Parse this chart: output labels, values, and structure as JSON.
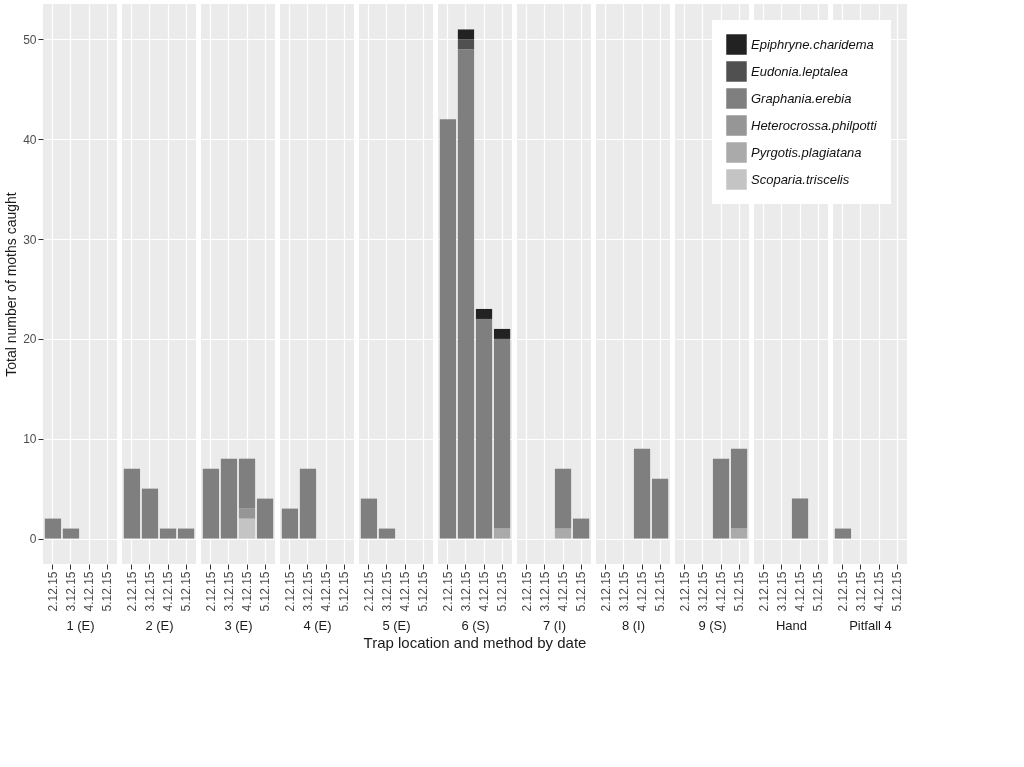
{
  "chart_data": [
    {
      "type": "bar",
      "title": "1 (E)",
      "ylabel": "Total number of moths caught",
      "categories": [
        "2.12.15",
        "3.12.15",
        "4.12.15",
        "5.12.15"
      ],
      "stacked": true,
      "ylim": [
        -2.55,
        53.55
      ],
      "yticks": [
        0,
        10,
        20,
        30,
        40,
        50
      ],
      "grid": true,
      "series": [
        {
          "color": "#c4c4c4",
          "values": [
            0,
            0,
            0,
            0
          ]
        },
        {
          "color": "#aaaaaa",
          "values": [
            0,
            0,
            0,
            0
          ]
        },
        {
          "color": "#969696",
          "values": [
            0,
            0,
            0,
            0
          ]
        },
        {
          "color": "#7f7f7f",
          "values": [
            2,
            1,
            0,
            0
          ]
        },
        {
          "color": "#505050",
          "values": [
            0,
            0,
            0,
            0
          ]
        },
        {
          "color": "#222222",
          "values": [
            0,
            0,
            0,
            0
          ]
        }
      ]
    },
    {
      "type": "bar",
      "title": "2 (E)",
      "categories": [
        "2.12.15",
        "3.12.15",
        "4.12.15",
        "5.12.15"
      ],
      "stacked": true,
      "ylim": [
        -2.55,
        53.55
      ],
      "yticks": [
        0,
        10,
        20,
        30,
        40,
        50
      ],
      "grid": true,
      "tick_labels": "x",
      "series": [
        {
          "color": "#c4c4c4",
          "values": [
            0,
            0,
            0,
            0
          ]
        },
        {
          "color": "#aaaaaa",
          "values": [
            0,
            0,
            0,
            0
          ]
        },
        {
          "color": "#969696",
          "values": [
            0,
            0,
            0,
            0
          ]
        },
        {
          "color": "#7f7f7f",
          "values": [
            7,
            5,
            1,
            1
          ]
        },
        {
          "color": "#505050",
          "values": [
            0,
            0,
            0,
            0
          ]
        },
        {
          "color": "#222222",
          "values": [
            0,
            0,
            0,
            0
          ]
        }
      ]
    },
    {
      "type": "bar",
      "title": "3 (E)",
      "categories": [
        "2.12.15",
        "3.12.15",
        "4.12.15",
        "5.12.15"
      ],
      "stacked": true,
      "ylim": [
        -2.55,
        53.55
      ],
      "yticks": [
        0,
        10,
        20,
        30,
        40,
        50
      ],
      "grid": true,
      "tick_labels": "x",
      "series": [
        {
          "color": "#c4c4c4",
          "values": [
            0,
            0,
            2,
            0
          ]
        },
        {
          "color": "#aaaaaa",
          "values": [
            0,
            0,
            0,
            0
          ]
        },
        {
          "color": "#969696",
          "values": [
            0,
            0,
            1,
            0
          ]
        },
        {
          "color": "#7f7f7f",
          "values": [
            7,
            8,
            5,
            4
          ]
        },
        {
          "color": "#505050",
          "values": [
            0,
            0,
            0,
            0
          ]
        },
        {
          "color": "#222222",
          "values": [
            0,
            0,
            0,
            0
          ]
        }
      ]
    },
    {
      "type": "bar",
      "title": "4 (E)",
      "categories": [
        "2.12.15",
        "3.12.15",
        "4.12.15",
        "5.12.15"
      ],
      "stacked": true,
      "ylim": [
        -2.55,
        53.55
      ],
      "yticks": [
        0,
        10,
        20,
        30,
        40,
        50
      ],
      "grid": true,
      "tick_labels": "x",
      "series": [
        {
          "color": "#c4c4c4",
          "values": [
            0,
            0,
            0,
            0
          ]
        },
        {
          "color": "#aaaaaa",
          "values": [
            0,
            0,
            0,
            0
          ]
        },
        {
          "color": "#969696",
          "values": [
            0,
            0,
            0,
            0
          ]
        },
        {
          "color": "#7f7f7f",
          "values": [
            3,
            7,
            0,
            0
          ]
        },
        {
          "color": "#505050",
          "values": [
            0,
            0,
            0,
            0
          ]
        },
        {
          "color": "#222222",
          "values": [
            0,
            0,
            0,
            0
          ]
        }
      ]
    },
    {
      "type": "bar",
      "title": "5 (E)",
      "categories": [
        "2.12.15",
        "3.12.15",
        "4.12.15",
        "5.12.15"
      ],
      "stacked": true,
      "ylim": [
        -2.55,
        53.55
      ],
      "yticks": [
        0,
        10,
        20,
        30,
        40,
        50
      ],
      "grid": true,
      "tick_labels": "x",
      "series": [
        {
          "color": "#c4c4c4",
          "values": [
            0,
            0,
            0,
            0
          ]
        },
        {
          "color": "#aaaaaa",
          "values": [
            0,
            0,
            0,
            0
          ]
        },
        {
          "color": "#969696",
          "values": [
            0,
            0,
            0,
            0
          ]
        },
        {
          "color": "#7f7f7f",
          "values": [
            4,
            1,
            0,
            0
          ]
        },
        {
          "color": "#505050",
          "values": [
            0,
            0,
            0,
            0
          ]
        },
        {
          "color": "#222222",
          "values": [
            0,
            0,
            0,
            0
          ]
        }
      ]
    },
    {
      "type": "bar",
      "title": "6 (S)",
      "xlabel": "Trap location and method by date",
      "categories": [
        "2.12.15",
        "3.12.15",
        "4.12.15",
        "5.12.15"
      ],
      "stacked": true,
      "ylim": [
        -2.55,
        53.55
      ],
      "yticks": [
        0,
        10,
        20,
        30,
        40,
        50
      ],
      "grid": true,
      "tick_labels": "x",
      "series": [
        {
          "color": "#c4c4c4",
          "values": [
            0,
            0,
            0,
            0
          ]
        },
        {
          "color": "#aaaaaa",
          "values": [
            0,
            0,
            0,
            1
          ]
        },
        {
          "color": "#969696",
          "values": [
            0,
            0,
            0,
            0
          ]
        },
        {
          "color": "#7f7f7f",
          "values": [
            42,
            49,
            22,
            19
          ]
        },
        {
          "color": "#505050",
          "values": [
            0,
            1,
            0,
            0
          ]
        },
        {
          "color": "#222222",
          "values": [
            0,
            1,
            1,
            1
          ]
        }
      ]
    },
    {
      "type": "bar",
      "title": "7 (I)",
      "categories": [
        "2.12.15",
        "3.12.15",
        "4.12.15",
        "5.12.15"
      ],
      "stacked": true,
      "ylim": [
        -2.55,
        53.55
      ],
      "yticks": [
        0,
        10,
        20,
        30,
        40,
        50
      ],
      "grid": true,
      "tick_labels": "x",
      "series": [
        {
          "color": "#c4c4c4",
          "values": [
            0,
            0,
            0,
            0
          ]
        },
        {
          "color": "#aaaaaa",
          "values": [
            0,
            0,
            1,
            0
          ]
        },
        {
          "color": "#969696",
          "values": [
            0,
            0,
            0,
            0
          ]
        },
        {
          "color": "#7f7f7f",
          "values": [
            0,
            0,
            6,
            2
          ]
        },
        {
          "color": "#505050",
          "values": [
            0,
            0,
            0,
            0
          ]
        },
        {
          "color": "#222222",
          "values": [
            0,
            0,
            0,
            0
          ]
        }
      ]
    },
    {
      "type": "bar",
      "title": "8 (I)",
      "categories": [
        "2.12.15",
        "3.12.15",
        "4.12.15",
        "5.12.15"
      ],
      "stacked": true,
      "ylim": [
        -2.55,
        53.55
      ],
      "yticks": [
        0,
        10,
        20,
        30,
        40,
        50
      ],
      "grid": true,
      "tick_labels": "x",
      "series": [
        {
          "color": "#c4c4c4",
          "values": [
            0,
            0,
            0,
            0
          ]
        },
        {
          "color": "#aaaaaa",
          "values": [
            0,
            0,
            0,
            0
          ]
        },
        {
          "color": "#969696",
          "values": [
            0,
            0,
            0,
            0
          ]
        },
        {
          "color": "#7f7f7f",
          "values": [
            0,
            0,
            9,
            6
          ]
        },
        {
          "color": "#505050",
          "values": [
            0,
            0,
            0,
            0
          ]
        },
        {
          "color": "#222222",
          "values": [
            0,
            0,
            0,
            0
          ]
        }
      ]
    },
    {
      "type": "bar",
      "title": "9 (S)",
      "categories": [
        "2.12.15",
        "3.12.15",
        "4.12.15",
        "5.12.15"
      ],
      "stacked": true,
      "ylim": [
        -2.55,
        53.55
      ],
      "yticks": [
        0,
        10,
        20,
        30,
        40,
        50
      ],
      "grid": true,
      "tick_labels": "x",
      "series": [
        {
          "color": "#c4c4c4",
          "values": [
            0,
            0,
            0,
            0
          ]
        },
        {
          "color": "#aaaaaa",
          "values": [
            0,
            0,
            0,
            1
          ]
        },
        {
          "color": "#969696",
          "values": [
            0,
            0,
            0,
            0
          ]
        },
        {
          "color": "#7f7f7f",
          "values": [
            0,
            0,
            8,
            8
          ]
        },
        {
          "color": "#505050",
          "values": [
            0,
            0,
            0,
            0
          ]
        },
        {
          "color": "#222222",
          "values": [
            0,
            0,
            0,
            0
          ]
        }
      ]
    },
    {
      "type": "bar",
      "title": "Hand",
      "categories": [
        "2.12.15",
        "3.12.15",
        "4.12.15",
        "5.12.15"
      ],
      "stacked": true,
      "ylim": [
        -2.55,
        53.55
      ],
      "yticks": [
        0,
        10,
        20,
        30,
        40,
        50
      ],
      "grid": true,
      "tick_labels": "x",
      "series": [
        {
          "color": "#c4c4c4",
          "values": [
            0,
            0,
            0,
            0
          ]
        },
        {
          "color": "#aaaaaa",
          "values": [
            0,
            0,
            0,
            0
          ]
        },
        {
          "color": "#969696",
          "values": [
            0,
            0,
            0,
            0
          ]
        },
        {
          "color": "#7f7f7f",
          "values": [
            0,
            0,
            4,
            0
          ]
        },
        {
          "color": "#505050",
          "values": [
            0,
            0,
            0,
            0
          ]
        },
        {
          "color": "#222222",
          "values": [
            0,
            0,
            0,
            0
          ]
        }
      ]
    },
    {
      "type": "bar",
      "title": "Pitfall 4",
      "categories": [
        "2.12.15",
        "3.12.15",
        "4.12.15",
        "5.12.15"
      ],
      "stacked": true,
      "ylim": [
        -2.55,
        53.55
      ],
      "yticks": [
        0,
        10,
        20,
        30,
        40,
        50
      ],
      "grid": true,
      "tick_labels": "x",
      "legend": "top left",
      "series": [
        {
          "name": "Scoparia.triscelis",
          "color": "#c4c4c4",
          "values": [
            0,
            0,
            0,
            0
          ]
        },
        {
          "name": "Pyrgotis.plagiatana",
          "color": "#aaaaaa",
          "values": [
            0,
            0,
            0,
            0
          ]
        },
        {
          "name": "Heterocrossa.philpotti",
          "color": "#969696",
          "values": [
            0,
            0,
            0,
            0
          ]
        },
        {
          "name": "Graphania.erebia",
          "color": "#7f7f7f",
          "values": [
            1,
            0,
            0,
            0
          ]
        },
        {
          "name": "Eudonia.leptalea",
          "color": "#505050",
          "values": [
            0,
            0,
            0,
            0
          ]
        },
        {
          "name": "Epiphryne.charidema",
          "color": "#222222",
          "values": [
            0,
            0,
            0,
            0
          ]
        }
      ]
    }
  ]
}
